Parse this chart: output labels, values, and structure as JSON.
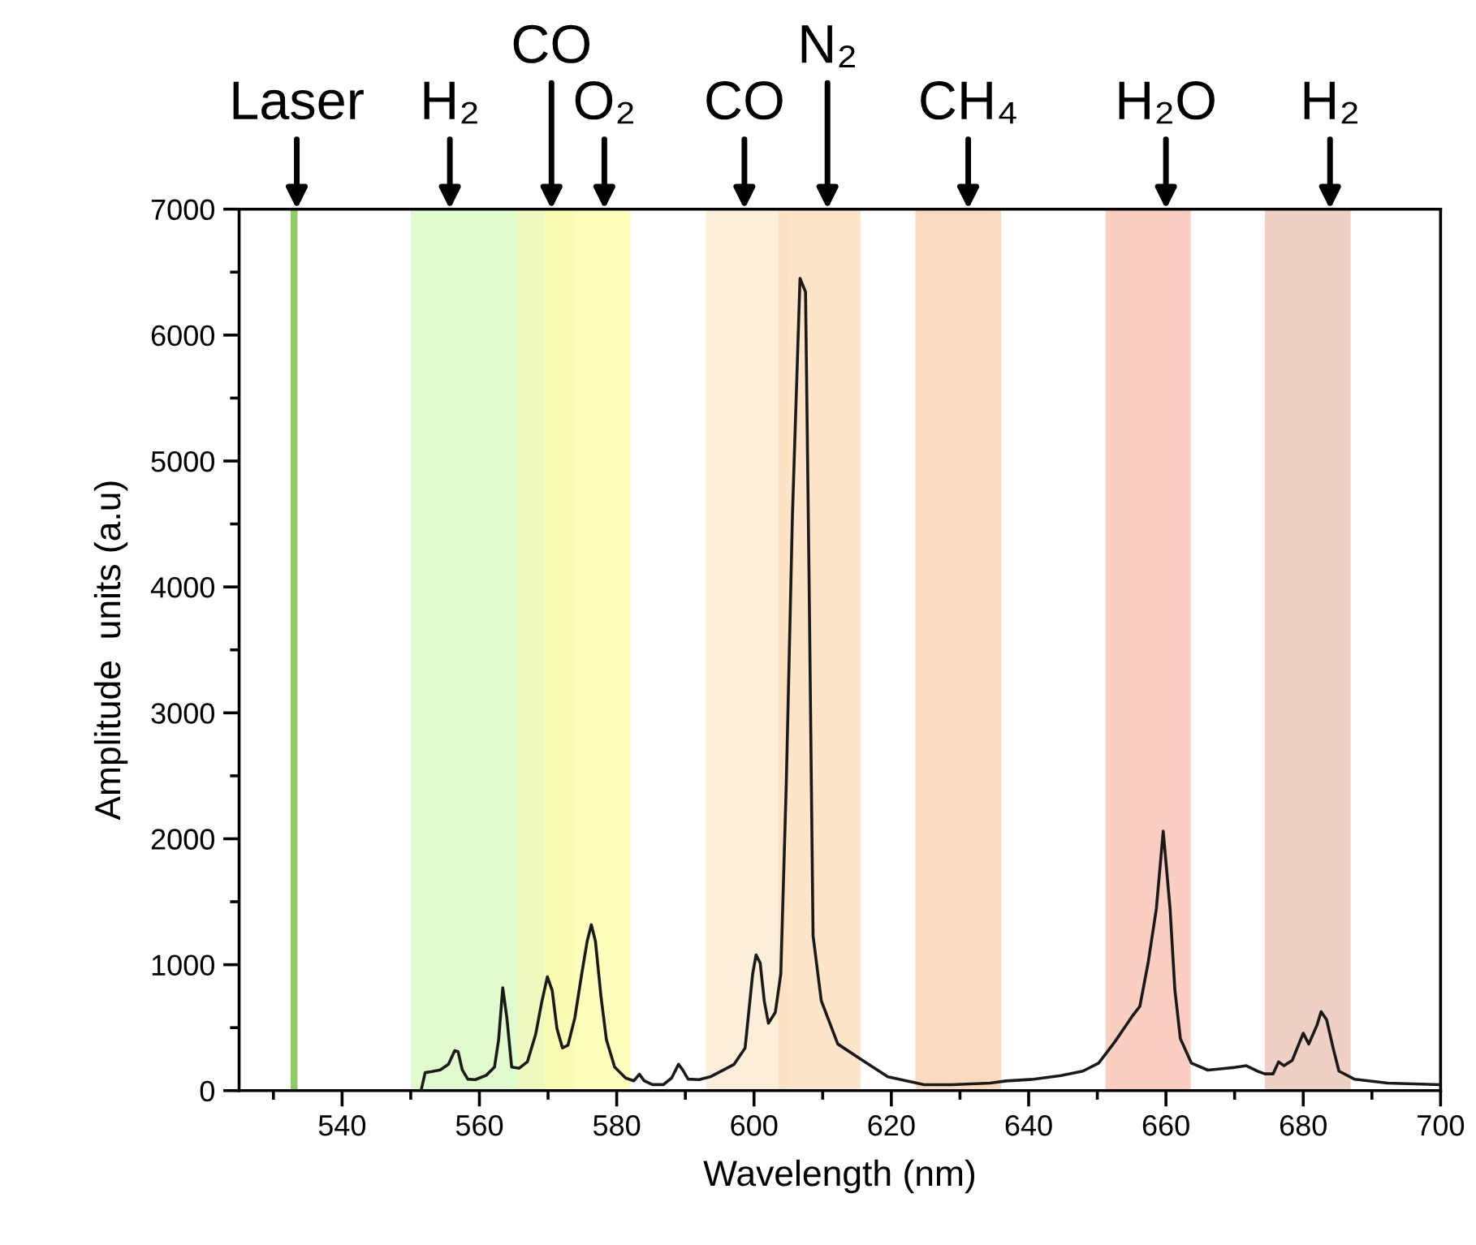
{
  "chart_data": {
    "type": "line",
    "xlabel": "Wavelength (nm)",
    "ylabel": "Amplitude  units (a.u)",
    "xlim": [
      525,
      700
    ],
    "ylim": [
      0,
      7000
    ],
    "xticks": [
      {
        "value": 530,
        "label": null
      },
      540,
      {
        "value": 550,
        "label": null
      },
      560,
      {
        "value": 570,
        "label": null
      },
      580,
      {
        "value": 590,
        "label": null
      },
      600,
      {
        "value": 610,
        "label": null
      },
      620,
      {
        "value": 630,
        "label": null
      },
      640,
      {
        "value": 650,
        "label": null
      },
      660,
      {
        "value": 670,
        "label": null
      },
      680,
      {
        "value": 690,
        "label": null
      },
      700
    ],
    "yticks": [
      0,
      {
        "value": 500,
        "label": null
      },
      1000,
      {
        "value": 1500,
        "label": null
      },
      2000,
      {
        "value": 2500,
        "label": null
      },
      3000,
      {
        "value": 3500,
        "label": null
      },
      4000,
      {
        "value": 4500,
        "label": null
      },
      5000,
      {
        "value": 5500,
        "label": null
      },
      6000,
      {
        "value": 6500,
        "label": null
      },
      7000
    ],
    "grid": false,
    "legend": false,
    "marker": "none",
    "line_style": "solid",
    "series": [
      {
        "color": "#1a1a1a",
        "x": [
          551.5,
          552.1,
          553.1,
          554.3,
          555.5,
          556.4,
          556.9,
          557.5,
          558.3,
          559.4,
          561,
          562.2,
          562.8,
          563.4,
          564,
          564.7,
          565.8,
          567,
          568.2,
          569.1,
          569.9,
          570.6,
          571.3,
          572.1,
          572.9,
          573.9,
          574.9,
          575.7,
          576.3,
          576.9,
          577.7,
          578.5,
          579.7,
          581.3,
          582.5,
          583.3,
          584,
          585.2,
          586.8,
          588,
          589,
          589.6,
          590.4,
          592,
          593.6,
          595.6,
          597.1,
          598.7,
          599.8,
          600.3,
          600.9,
          601.5,
          602.1,
          603.1,
          603.9,
          604.7,
          605.6,
          606.7,
          607.5,
          608,
          608.6,
          609.8,
          612.2,
          615.8,
          619.5,
          624.8,
          628.8,
          634.4,
          636.7,
          640.7,
          644.7,
          647.9,
          650.2,
          652.6,
          655,
          656.2,
          657.4,
          658.6,
          659.6,
          660.6,
          661.3,
          662.1,
          663.7,
          666.1,
          668.5,
          670.1,
          671.7,
          673.3,
          674.4,
          675.6,
          676.4,
          677.2,
          678.4,
          680,
          680.8,
          682,
          682.6,
          683.4,
          684.4,
          685.2,
          687.5,
          692.3,
          699.8
        ],
        "values": [
          0,
          143,
          152,
          165,
          209,
          317,
          309,
          165,
          91,
          87,
          122,
          187,
          404,
          817,
          578,
          187,
          178,
          230,
          448,
          709,
          904,
          796,
          491,
          339,
          361,
          578,
          926,
          1187,
          1317,
          1187,
          752,
          404,
          187,
          100,
          78,
          130,
          78,
          48,
          48,
          100,
          209,
          165,
          91,
          87,
          109,
          165,
          209,
          339,
          926,
          1078,
          1013,
          709,
          535,
          622,
          926,
          2440,
          4580,
          6450,
          6343,
          4151,
          1229,
          713,
          370,
          241,
          110,
          47,
          47,
          60,
          77,
          90,
          120,
          155,
          219,
          391,
          584,
          670,
          1014,
          1444,
          2060,
          1444,
          799,
          413,
          219,
          163,
          176,
          185,
          198,
          155,
          133,
          133,
          228,
          198,
          241,
          456,
          370,
          520,
          627,
          563,
          327,
          155,
          90,
          60,
          47
        ]
      }
    ],
    "bands": [
      {
        "axis": "x",
        "from": 532.5,
        "to": 533.5,
        "color": "#7cc142"
      },
      {
        "axis": "x",
        "from": 550,
        "to": 565.5,
        "color": "#dbfbc6"
      },
      {
        "axis": "x",
        "from": 565.5,
        "to": 574,
        "color": "#eaf8b4"
      },
      {
        "axis": "x",
        "from": 569.5,
        "to": 582,
        "color": "#fdfdb0"
      },
      {
        "axis": "x",
        "from": 593,
        "to": 605,
        "color": "#fdebd2"
      },
      {
        "axis": "x",
        "from": 603.5,
        "to": 615.5,
        "color": "#fde0bf"
      },
      {
        "axis": "x",
        "from": 623.5,
        "to": 636,
        "color": "#fcd4b4"
      },
      {
        "axis": "x",
        "from": 651.2,
        "to": 663.6,
        "color": "#f9c5b5"
      },
      {
        "axis": "x",
        "from": 674.4,
        "to": 686.9,
        "color": "#ecc8bb"
      }
    ],
    "annotations": [
      {
        "text": "Laser",
        "x": 533.4,
        "y": 7000
      },
      {
        "text": "H₂",
        "x": 555.7,
        "y": 7000
      },
      {
        "text": "CO",
        "x": 570.5,
        "y": 7000
      },
      {
        "text": "O₂",
        "x": 578.2,
        "y": 7000
      },
      {
        "text": "CO",
        "x": 598.6,
        "y": 7000
      },
      {
        "text": "N₂",
        "x": 610.7,
        "y": 7000
      },
      {
        "text": "CH₄",
        "x": 631.2,
        "y": 7000
      },
      {
        "text": "H₂O",
        "x": 660,
        "y": 7000
      },
      {
        "text": "H₂",
        "x": 683.9,
        "y": 7000
      }
    ]
  }
}
